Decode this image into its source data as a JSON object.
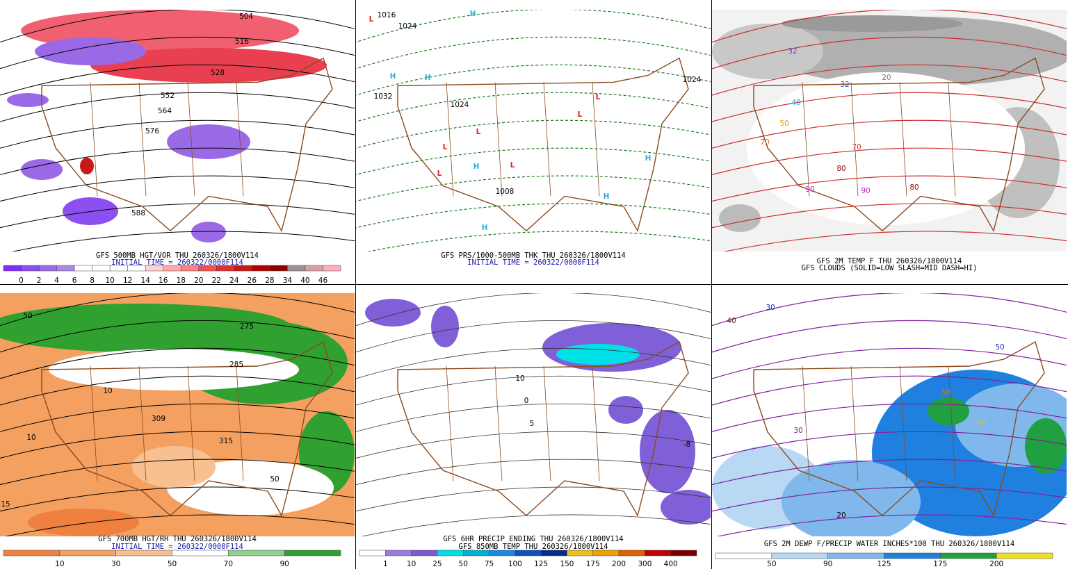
{
  "panels": [
    {
      "captions": [
        "GFS 500MB HGT/VOR THU 260326/1800V114",
        "INITIAL TIME = 260322/0000F114"
      ],
      "colorbar": {
        "colors": [
          "#7b2ff7",
          "#8c4ff0",
          "#9a6ae6",
          "#a888e8",
          "#ffffff",
          "#ffffff",
          "#ffffff",
          "#ffffff",
          "#ffd0d0",
          "#ffa8a8",
          "#ff8080",
          "#f05050",
          "#e03030",
          "#c81818",
          "#b00000",
          "#880000",
          "#a09090",
          "#d8a0a8",
          "#ffb0c0"
        ],
        "labels": [
          0,
          2,
          4,
          6,
          8,
          10,
          12,
          14,
          16,
          18,
          20,
          22,
          24,
          26,
          28,
          34,
          40,
          46
        ]
      },
      "labels": [
        "504",
        "516",
        "528",
        "552",
        "564",
        "576",
        "588"
      ]
    },
    {
      "captions": [
        "GFS PRS/1000-500MB THK THU 260326/1800V114",
        "INITIAL TIME = 260322/0000F114"
      ],
      "labels": [
        "1016",
        "1024",
        "1032",
        "1024",
        "1008",
        "1024",
        "H",
        "H",
        "H",
        "H",
        "H",
        "H",
        "H",
        "L",
        "L",
        "L",
        "L",
        "L",
        "L",
        "L"
      ]
    },
    {
      "captions": [
        "GFS 2M TEMP F THU 260326/1800V114",
        "GFS CLOUDS (SOLID=LOW SLASH=MID DASH=HI)"
      ],
      "labels": [
        "32",
        "32",
        "40",
        "50",
        "70",
        "70",
        "80",
        "80",
        "90",
        "90",
        "20"
      ]
    },
    {
      "captions": [
        "GFS 700MB HGT/RH THU 260326/1800V114",
        "INITIAL TIME = 260322/0000F114"
      ],
      "colorbar": {
        "colors": [
          "#f08040",
          "#f4a060",
          "#f8c090",
          "#ffffff",
          "#90d090",
          "#30a030"
        ],
        "labels": [
          10,
          30,
          50,
          70,
          90
        ]
      },
      "labels": [
        "50",
        "10",
        "10",
        "275",
        "285",
        "309",
        "315",
        "50",
        "15"
      ]
    },
    {
      "captions": [
        "GFS 6HR PRECIP ENDING THU 260326/1800V114",
        "GFS 850MB TEMP THU 260326/1800V114"
      ],
      "colorbar": {
        "colors": [
          "#ffffff",
          "#9b7be0",
          "#7b5cd0",
          "#00e0e8",
          "#00b0d8",
          "#1e88e8",
          "#1050c0",
          "#0a2a90",
          "#e8c020",
          "#f0a000",
          "#e06000",
          "#c00000",
          "#7a0000"
        ],
        "labels": [
          1,
          10,
          25,
          50,
          75,
          100,
          125,
          150,
          175,
          200,
          300,
          400
        ]
      },
      "labels": [
        "10",
        "0",
        "5",
        "-8"
      ]
    },
    {
      "captions": [
        "GFS 2M DEWP F/PRECIP WATER INCHES*100 THU 260326/1800V114"
      ],
      "colorbar": {
        "colors": [
          "#ffffff",
          "#b8d8f4",
          "#80b8ec",
          "#2080e0",
          "#20a040",
          "#f0e020"
        ],
        "labels": [
          50,
          90,
          125,
          175,
          200
        ]
      },
      "labels": [
        "30",
        "40",
        "50",
        "50",
        "50",
        "20",
        "30"
      ]
    }
  ]
}
